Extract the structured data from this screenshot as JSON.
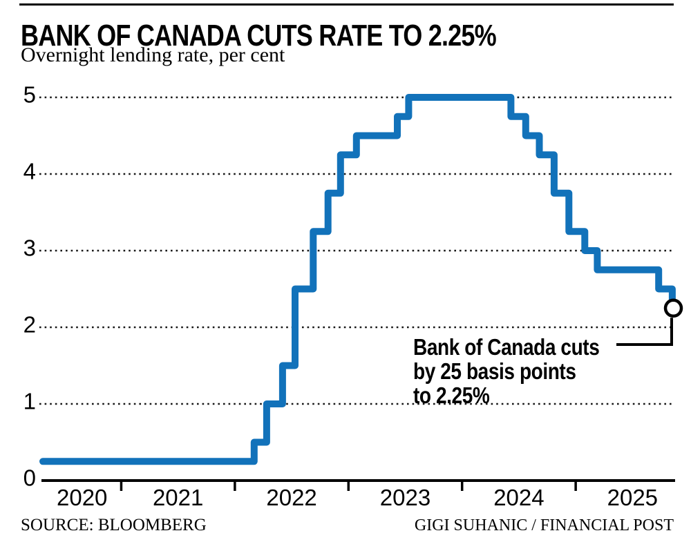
{
  "header": {
    "title": "BANK OF CANADA CUTS RATE TO 2.25%",
    "subtitle": "Overnight lending rate, per cent"
  },
  "annotation": {
    "lines": [
      "Bank of Canada cuts",
      "by 25 basis points",
      "to 2.25%"
    ]
  },
  "footer": {
    "source": "SOURCE: BLOOMBERG",
    "credit": "GIGI SUHANIC / FINANCIAL POST"
  },
  "chart_data": {
    "type": "line",
    "subtype": "step-after",
    "title": "BANK OF CANADA CUTS RATE TO 2.25%",
    "ylabel": "Overnight lending rate, per cent",
    "ylim": [
      0,
      5
    ],
    "yticks": [
      0,
      1,
      2,
      3,
      4,
      5
    ],
    "xtick_years": [
      2020,
      2021,
      2022,
      2023,
      2024,
      2025
    ],
    "x_range": [
      2020.31,
      2025.875
    ],
    "grid": "dotted-horizontal",
    "legend": "none",
    "line_color": "#1272BA",
    "grid_color": "#161616",
    "axis_color": "#000000",
    "series": [
      {
        "name": "Bank of Canada overnight lending rate",
        "points": [
          [
            2020.31,
            0.25
          ],
          [
            2022.17,
            0.5
          ],
          [
            2022.28,
            1.0
          ],
          [
            2022.42,
            1.5
          ],
          [
            2022.53,
            2.5
          ],
          [
            2022.69,
            3.25
          ],
          [
            2022.82,
            3.75
          ],
          [
            2022.93,
            4.25
          ],
          [
            2023.07,
            4.5
          ],
          [
            2023.43,
            4.75
          ],
          [
            2023.53,
            5.0
          ],
          [
            2024.43,
            4.75
          ],
          [
            2024.56,
            4.5
          ],
          [
            2024.68,
            4.25
          ],
          [
            2024.81,
            3.75
          ],
          [
            2024.94,
            3.25
          ],
          [
            2025.08,
            3.0
          ],
          [
            2025.19,
            2.75
          ],
          [
            2025.73,
            2.5
          ],
          [
            2025.85,
            2.25
          ]
        ]
      }
    ],
    "end_marker": {
      "t": 2025.86,
      "value": 2.25,
      "style": "open-circle"
    }
  }
}
